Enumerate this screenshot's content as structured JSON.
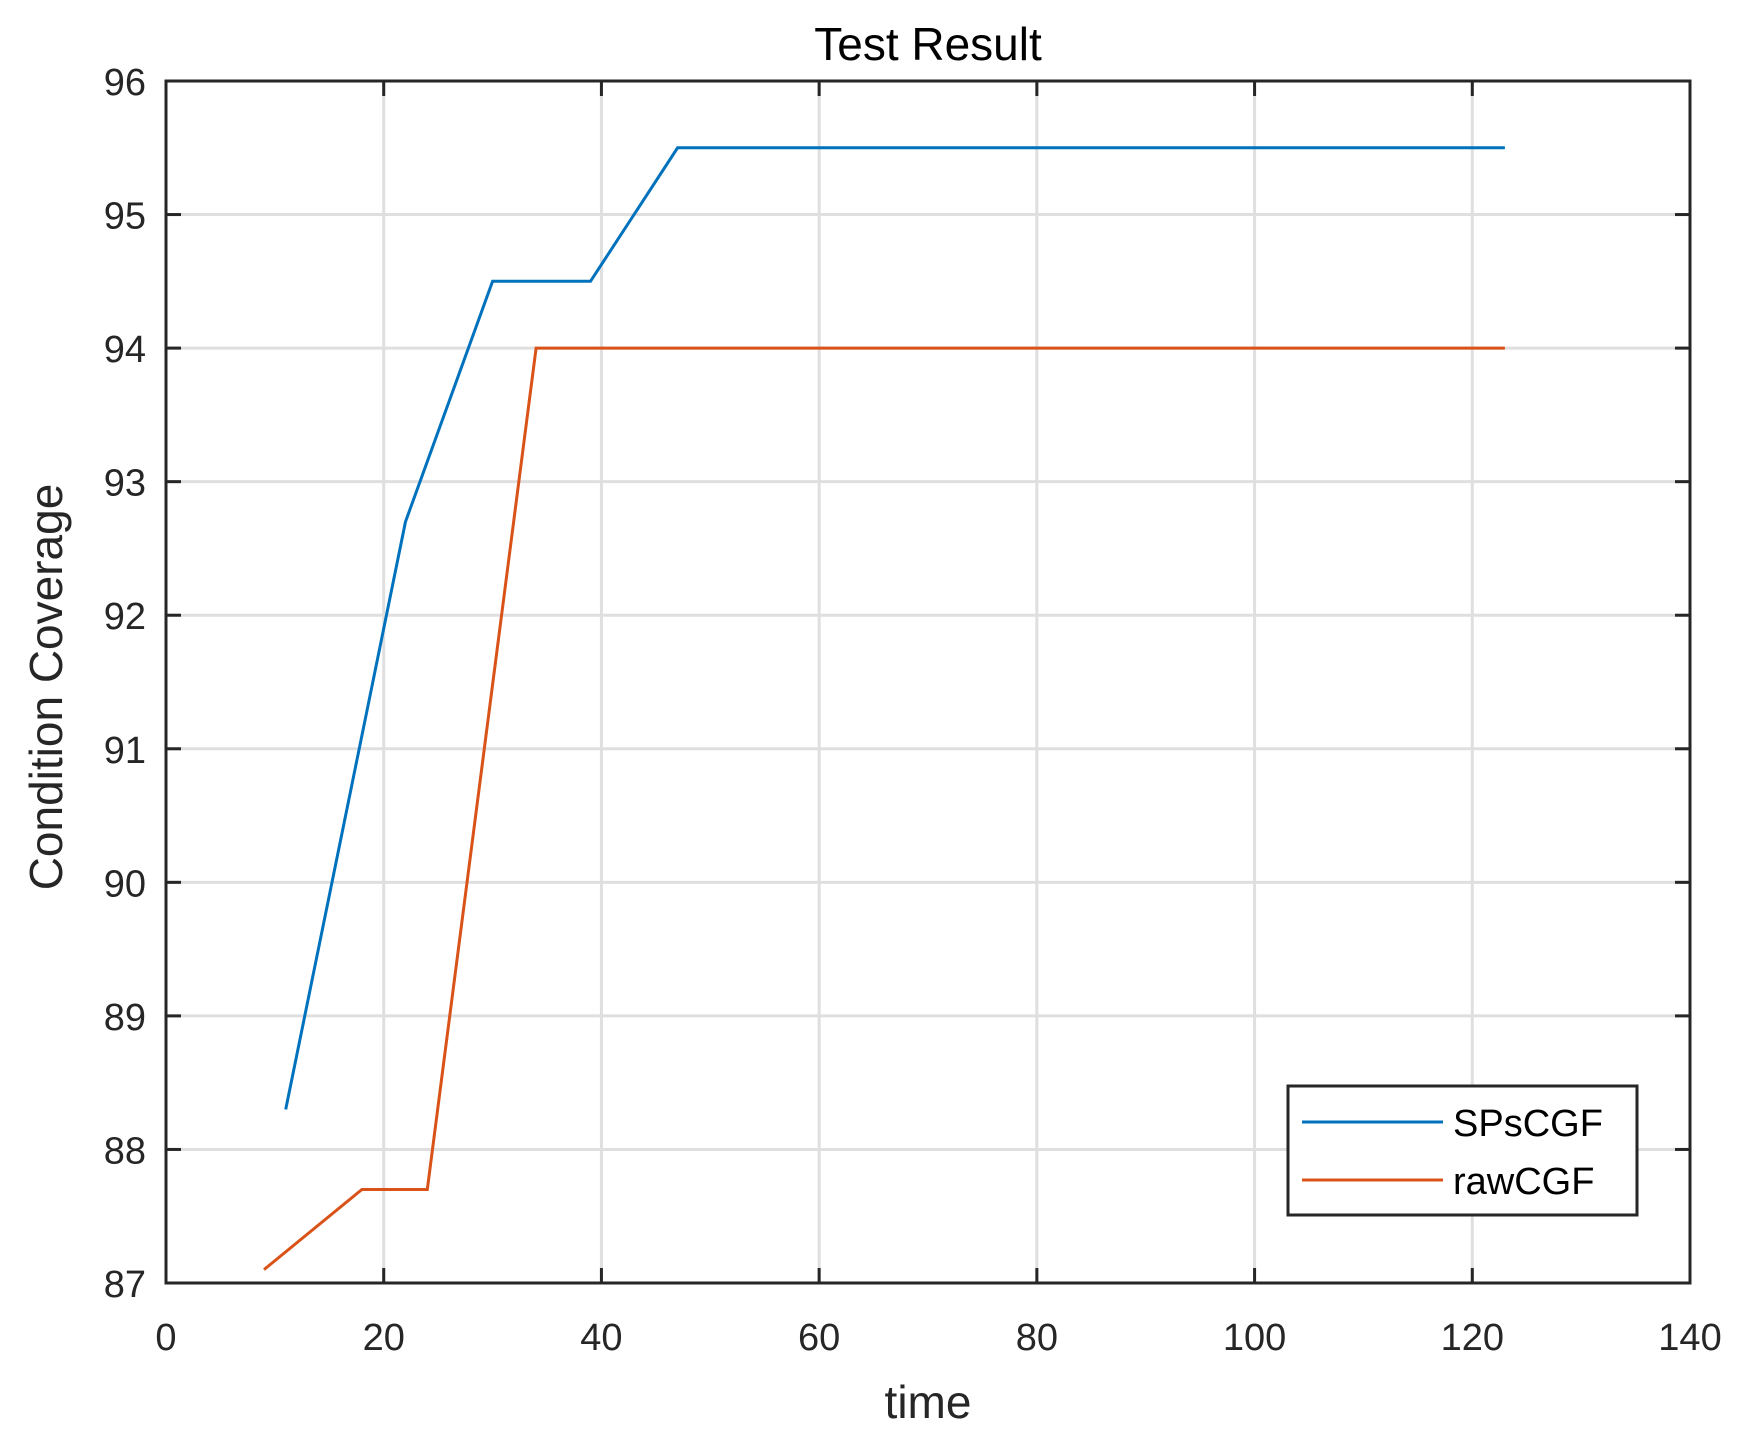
{
  "chart_data": {
    "type": "line",
    "title": "Test Result",
    "xlabel": "time",
    "ylabel": "Condition Coverage",
    "xlim": [
      0,
      140
    ],
    "ylim": [
      87,
      96
    ],
    "xticks": [
      0,
      20,
      40,
      60,
      80,
      100,
      120,
      140
    ],
    "yticks": [
      87,
      88,
      89,
      90,
      91,
      92,
      93,
      94,
      95,
      96
    ],
    "grid": true,
    "legend_position": "southeast",
    "series": [
      {
        "name": "SPsCGF",
        "color": "#0072BD",
        "x": [
          11,
          22,
          30,
          39,
          47,
          123
        ],
        "y": [
          88.3,
          92.7,
          94.5,
          94.5,
          95.5,
          95.5
        ]
      },
      {
        "name": "rawCGF",
        "color": "#D95319",
        "x": [
          9,
          18,
          24,
          34,
          123
        ],
        "y": [
          87.1,
          87.7,
          87.7,
          94.0,
          94.0
        ]
      }
    ]
  },
  "colors": {
    "axis": "#262626",
    "grid": "#DFDFDF",
    "background": "#FFFFFF"
  }
}
